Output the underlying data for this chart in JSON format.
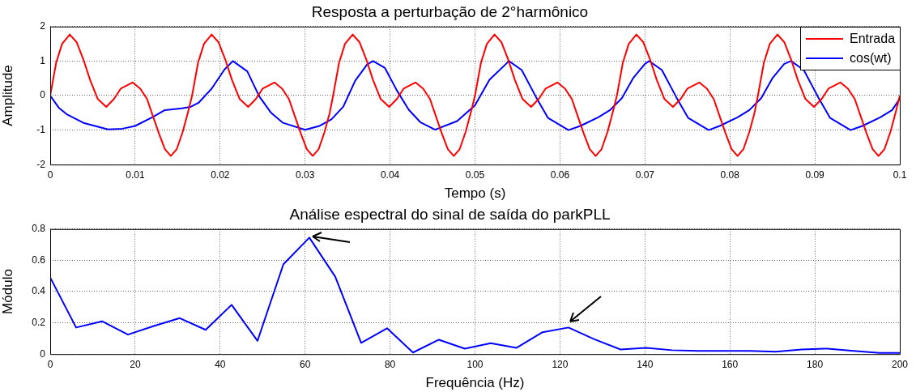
{
  "chart_data": [
    {
      "type": "line",
      "title": "Resposta a perturbação de 2°harmônico",
      "xlabel": "Tempo (s)",
      "ylabel": "Amplitude",
      "xlim": [
        0,
        0.1
      ],
      "xticks": [
        0,
        0.01,
        0.02,
        0.03,
        0.04,
        0.05,
        0.06,
        0.07,
        0.08,
        0.09,
        0.1
      ],
      "ylim": [
        -2,
        2
      ],
      "yticks": [
        -2,
        -1,
        0,
        1,
        2
      ],
      "grid": true,
      "legend": "top right",
      "series": [
        {
          "name": "Entrada",
          "color": "#ff0000",
          "x": [
            0,
            0.0007,
            0.0014,
            0.0023,
            0.0031,
            0.0039,
            0.0047,
            0.0056,
            0.0066,
            0.0075,
            0.0083,
            0.0097,
            0.0106,
            0.0114,
            0.0121,
            0.0128,
            0.0135,
            0.0142,
            0.0149,
            0.0156,
            0.0162,
            0.0167,
            0.0174,
            0.0181,
            0.019,
            0.0198,
            0.0206,
            0.0214,
            0.0223,
            0.0233,
            0.0242,
            0.025,
            0.0264,
            0.0273,
            0.0281,
            0.0288,
            0.0295,
            0.0302,
            0.0309,
            0.0316,
            0.0323,
            0.0329,
            0.0333,
            0.034,
            0.0347,
            0.0356,
            0.0364,
            0.0372,
            0.038,
            0.0389,
            0.0399,
            0.0408,
            0.0416,
            0.043,
            0.0439,
            0.0447,
            0.0454,
            0.0461,
            0.0468,
            0.0475,
            0.0482,
            0.0489,
            0.0495,
            0.05,
            0.0507,
            0.0514,
            0.0523,
            0.0531,
            0.0539,
            0.0547,
            0.0556,
            0.0566,
            0.0575,
            0.0583,
            0.0597,
            0.0606,
            0.0614,
            0.0621,
            0.0628,
            0.0635,
            0.0642,
            0.0649,
            0.0656,
            0.0662,
            0.0667,
            0.0674,
            0.0681,
            0.069,
            0.0698,
            0.0706,
            0.0714,
            0.0723,
            0.0733,
            0.0742,
            0.075,
            0.0764,
            0.0773,
            0.0781,
            0.0788,
            0.0795,
            0.0802,
            0.0809,
            0.0816,
            0.0823,
            0.0829,
            0.0833,
            0.084,
            0.0847,
            0.0856,
            0.0864,
            0.0872,
            0.088,
            0.0889,
            0.0899,
            0.0908,
            0.0916,
            0.093,
            0.0939,
            0.0947,
            0.0954,
            0.0961,
            0.0968,
            0.0975,
            0.0982,
            0.0989,
            0.0995,
            0.1
          ],
          "values": [
            0,
            0.95,
            1.5,
            1.77,
            1.55,
            1.05,
            0.45,
            -0.1,
            -0.33,
            -0.1,
            0.2,
            0.38,
            0.2,
            -0.1,
            -0.6,
            -1.1,
            -1.55,
            -1.75,
            -1.55,
            -1.05,
            -0.5,
            0,
            0.95,
            1.5,
            1.77,
            1.55,
            1.05,
            0.45,
            -0.1,
            -0.33,
            -0.1,
            0.2,
            0.38,
            0.2,
            -0.1,
            -0.6,
            -1.1,
            -1.55,
            -1.75,
            -1.55,
            -1.05,
            -0.5,
            0,
            0.95,
            1.5,
            1.77,
            1.55,
            1.05,
            0.45,
            -0.1,
            -0.33,
            -0.1,
            0.2,
            0.38,
            0.2,
            -0.1,
            -0.6,
            -1.1,
            -1.55,
            -1.75,
            -1.55,
            -1.05,
            -0.5,
            0,
            0.95,
            1.5,
            1.77,
            1.55,
            1.05,
            0.45,
            -0.1,
            -0.33,
            -0.1,
            0.2,
            0.38,
            0.2,
            -0.1,
            -0.6,
            -1.1,
            -1.55,
            -1.75,
            -1.55,
            -1.05,
            -0.5,
            0,
            0.95,
            1.5,
            1.77,
            1.55,
            1.05,
            0.45,
            -0.1,
            -0.33,
            -0.1,
            0.2,
            0.38,
            0.2,
            -0.1,
            -0.6,
            -1.1,
            -1.55,
            -1.75,
            -1.55,
            -1.05,
            -0.5,
            0,
            0.95,
            1.5,
            1.77,
            1.55,
            1.05,
            0.45,
            -0.1,
            -0.33,
            -0.1,
            0.2,
            0.38,
            0.2,
            -0.1,
            -0.6,
            -1.1,
            -1.55,
            -1.75,
            -1.55,
            -1.05,
            -0.5,
            0
          ]
        },
        {
          "name": "cos(wt)",
          "color": "#0000ff",
          "x": [
            0,
            0.001,
            0.002,
            0.004,
            0.0068,
            0.0085,
            0.01,
            0.012,
            0.0135,
            0.0155,
            0.0165,
            0.0175,
            0.019,
            0.0205,
            0.0215,
            0.0232,
            0.0246,
            0.026,
            0.0274,
            0.03,
            0.0317,
            0.0331,
            0.0345,
            0.0359,
            0.0373,
            0.038,
            0.0394,
            0.0408,
            0.0422,
            0.0436,
            0.0453,
            0.0479,
            0.05,
            0.0517,
            0.054,
            0.0555,
            0.0572,
            0.0586,
            0.061,
            0.0624,
            0.0645,
            0.0659,
            0.0673,
            0.0686,
            0.07,
            0.0705,
            0.072,
            0.0737,
            0.0751,
            0.0775,
            0.0788,
            0.0809,
            0.0823,
            0.0837,
            0.085,
            0.0864,
            0.0872,
            0.0887,
            0.0904,
            0.0918,
            0.0942,
            0.0956,
            0.0977,
            0.0991,
            0.1
          ],
          "values": [
            0,
            -0.35,
            -0.55,
            -0.8,
            -0.98,
            -0.96,
            -0.88,
            -0.63,
            -0.42,
            -0.37,
            -0.33,
            -0.2,
            0.2,
            0.75,
            1.0,
            0.7,
            -0.02,
            -0.5,
            -0.79,
            -0.99,
            -0.88,
            -0.69,
            -0.32,
            0.43,
            0.9,
            1.0,
            0.8,
            0.15,
            -0.41,
            -0.78,
            -0.99,
            -0.74,
            -0.28,
            0.46,
            1.0,
            0.74,
            -0.05,
            -0.65,
            -1.0,
            -0.88,
            -0.63,
            -0.42,
            -0.07,
            0.5,
            0.92,
            1.0,
            0.74,
            -0.05,
            -0.65,
            -1.0,
            -0.88,
            -0.63,
            -0.42,
            -0.07,
            0.5,
            0.92,
            1.0,
            0.74,
            -0.05,
            -0.65,
            -1.0,
            -0.88,
            -0.63,
            -0.42,
            -0.09
          ]
        }
      ]
    },
    {
      "type": "line",
      "title": "Análise espectral do sinal de saída do parkPLL",
      "xlabel": "Frequência (Hz)",
      "ylabel": "Módulo",
      "xlim": [
        0,
        200
      ],
      "xticks": [
        0,
        20,
        40,
        60,
        80,
        100,
        120,
        140,
        160,
        180,
        200
      ],
      "ylim": [
        0,
        0.8
      ],
      "yticks": [
        0,
        0.2,
        0.4,
        0.6,
        0.8
      ],
      "grid": true,
      "series": [
        {
          "color": "#0000ff",
          "x": [
            0,
            6.1,
            12.2,
            18.3,
            24.4,
            30.5,
            36.6,
            42.7,
            48.8,
            54.9,
            61,
            67.1,
            73.2,
            79.3,
            85.4,
            91.5,
            97.6,
            103.7,
            109.8,
            115.9,
            122,
            128.1,
            134.2,
            140.3,
            146.4,
            152.5,
            158.6,
            164.7,
            170.8,
            176.9,
            183,
            189.1,
            195.2,
            200
          ],
          "values": [
            0.49,
            0.17,
            0.21,
            0.125,
            0.18,
            0.23,
            0.155,
            0.315,
            0.085,
            0.575,
            0.745,
            0.495,
            0.072,
            0.165,
            0.01,
            0.092,
            0.035,
            0.07,
            0.04,
            0.14,
            0.17,
            0.095,
            0.03,
            0.04,
            0.025,
            0.02,
            0.02,
            0.02,
            0.015,
            0.03,
            0.035,
            0.02,
            0.008,
            0.008
          ]
        }
      ]
    }
  ]
}
